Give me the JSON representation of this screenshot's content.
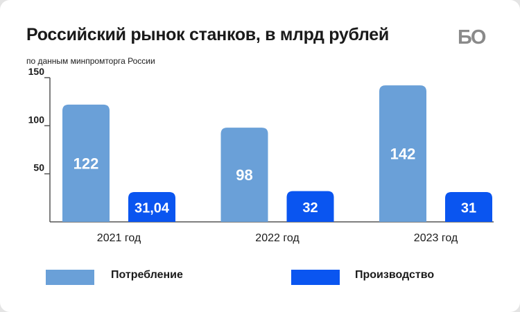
{
  "header": {
    "title": "Российский рынок станков, в млрд рублей",
    "subtitle": "по данным минпромторга России",
    "logo": "БО"
  },
  "colors": {
    "consumption": "#6aa0d8",
    "production": "#0a55f0",
    "axis": "#555555",
    "text": "#1a1a1a",
    "logo": "#8a8a8a"
  },
  "chart_data": {
    "type": "bar",
    "title": "Российский рынок станков, в млрд рублей",
    "subtitle": "по данным минпромторга России",
    "categories": [
      "2021 год",
      "2022 год",
      "2023 год"
    ],
    "series": [
      {
        "name": "Потребление",
        "values": [
          122,
          98,
          142
        ],
        "labels": [
          "122",
          "98",
          "142"
        ]
      },
      {
        "name": "Производство",
        "values": [
          31.04,
          32,
          31
        ],
        "labels": [
          "31,04",
          "32",
          "31"
        ]
      }
    ],
    "yticks": [
      50,
      100,
      150
    ],
    "ylim": [
      0,
      150
    ],
    "grid": false,
    "legend_position": "bottom"
  }
}
